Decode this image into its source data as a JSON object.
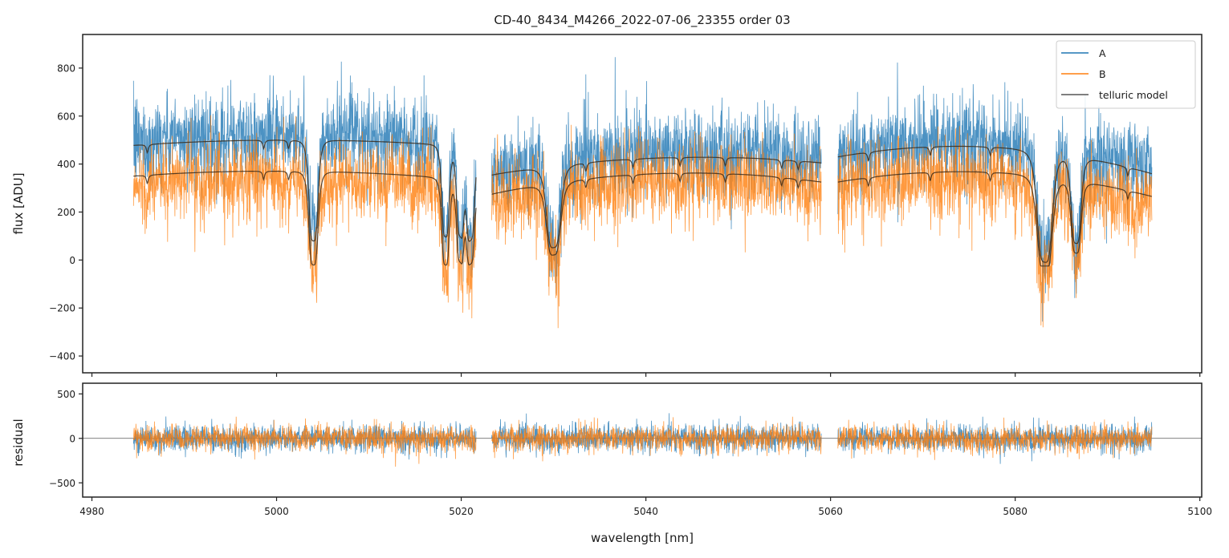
{
  "chart_data": [
    {
      "panel": "spectrum",
      "type": "line",
      "title": "CD-40_8434_M4266_2022-07-06_23355  order 03",
      "xlabel": "",
      "ylabel": "flux [ADU]",
      "xlim": [
        4979,
        5100.2
      ],
      "ylim": [
        -470,
        940
      ],
      "xticks": [
        4980,
        5000,
        5020,
        5040,
        5060,
        5080,
        5100
      ],
      "yticks": [
        -400,
        -200,
        0,
        200,
        400,
        600,
        800
      ],
      "ytick_labels": [
        "−400",
        "−200",
        "0",
        "200",
        "400",
        "600",
        "800"
      ],
      "grid": false,
      "legend": {
        "position": "top-right",
        "entries": [
          {
            "label": "A",
            "color": "#1f77b4"
          },
          {
            "label": "B",
            "color": "#ff7f0e"
          },
          {
            "label": "telluric model",
            "color": "#555555"
          }
        ]
      },
      "segments": [
        {
          "x": [
            4984.5,
            5021.6
          ],
          "continuum_A": [
            478,
            500,
            470
          ],
          "continuum_B": [
            350,
            370,
            330
          ]
        },
        {
          "x": [
            5023.3,
            5059.0
          ],
          "continuum_A": [
            355,
            425,
            405
          ],
          "continuum_B": [
            275,
            360,
            325
          ]
        },
        {
          "x": [
            5060.8,
            5094.8
          ],
          "continuum_A": [
            430,
            470,
            360
          ],
          "continuum_B": [
            325,
            365,
            265
          ]
        }
      ],
      "series": [
        {
          "name": "A",
          "color": "#1f77b4",
          "noise_sigma": 110,
          "offset": 20
        },
        {
          "name": "B",
          "color": "#ff7f0e",
          "noise_sigma": 105,
          "offset": -30
        },
        {
          "name": "telluric model A",
          "color": "#3a2a1a"
        },
        {
          "name": "telluric model B",
          "color": "#3a2a1a"
        }
      ],
      "strong_lines": [
        {
          "center": 5004.0,
          "depth_A": 420,
          "depth_B": 390,
          "width": 0.55
        },
        {
          "center": 5018.3,
          "depth_A": 380,
          "depth_B": 360,
          "width": 0.45
        },
        {
          "center": 5019.9,
          "depth_A": 360,
          "depth_B": 330,
          "width": 0.45
        },
        {
          "center": 5021.0,
          "depth_A": 380,
          "depth_B": 340,
          "width": 0.5
        },
        {
          "center": 5030.0,
          "depth_A": 340,
          "depth_B": 300,
          "width": 0.85
        },
        {
          "center": 5083.2,
          "depth_A": 460,
          "depth_B": 400,
          "width": 0.9
        },
        {
          "center": 5086.6,
          "depth_A": 360,
          "depth_B": 300,
          "width": 0.6
        }
      ],
      "weak_lines": [
        4986.0,
        4998.6,
        5001.3,
        5033.5,
        5038.6,
        5043.7,
        5048.6,
        5054.7,
        5056.5,
        5064.1,
        5070.8,
        5077.3,
        5092.2
      ]
    },
    {
      "panel": "residual",
      "type": "line",
      "xlabel": "wavelength [nm]",
      "ylabel": "residual",
      "xlim": [
        4979,
        5100.2
      ],
      "ylim": [
        -660,
        620
      ],
      "xticks": [
        4980,
        5000,
        5020,
        5040,
        5060,
        5080,
        5100
      ],
      "xtick_labels": [
        "4980",
        "5000",
        "5020",
        "5040",
        "5060",
        "5080",
        "5100"
      ],
      "yticks": [
        -500,
        0,
        500
      ],
      "ytick_labels": [
        "−500",
        "0",
        "500"
      ],
      "zero_line": 0,
      "series": [
        {
          "name": "A",
          "color": "#1f77b4",
          "noise_sigma": 95
        },
        {
          "name": "B",
          "color": "#ff7f0e",
          "noise_sigma": 90
        }
      ]
    }
  ]
}
